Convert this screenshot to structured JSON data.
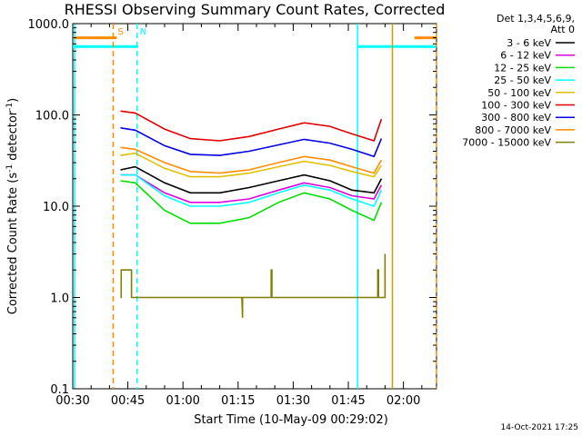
{
  "chart_data": {
    "type": "line",
    "title": "RHESSI Observing Summary Count Rates, Corrected",
    "xlabel": "Start Time (10-May-09 00:29:02)",
    "ylabel_main": "Corrected Count Rate (s",
    "ylabel_sup": "-1",
    "ylabel_mid": " detector",
    "ylabel_sup2": "-1",
    "ylabel_end": ")",
    "y_scale": "log",
    "xlim_minutes": [
      30,
      129
    ],
    "ylim": [
      0.1,
      1000
    ],
    "x_ticks": [
      {
        "minute": 30,
        "label": "00:30"
      },
      {
        "minute": 45,
        "label": "00:45"
      },
      {
        "minute": 60,
        "label": "01:00"
      },
      {
        "minute": 75,
        "label": "01:15"
      },
      {
        "minute": 90,
        "label": "01:30"
      },
      {
        "minute": 105,
        "label": "01:45"
      },
      {
        "minute": 120,
        "label": "02:00"
      }
    ],
    "y_ticks": [
      {
        "value": 0.1,
        "label": "0.1"
      },
      {
        "value": 1,
        "label": "1.0"
      },
      {
        "value": 10,
        "label": "10.0"
      },
      {
        "value": 100,
        "label": "100.0"
      },
      {
        "value": 1000,
        "label": "1000.0"
      }
    ],
    "legend_header": [
      "Det 1,3,4,5,6,9,",
      "Att 0"
    ],
    "series": [
      {
        "name": "3 - 6 keV",
        "color": "#000000",
        "t": [
          43,
          47,
          55,
          62,
          70,
          78,
          86,
          93,
          100,
          106,
          112,
          114
        ],
        "values": [
          25,
          27,
          18,
          14,
          14,
          16,
          19,
          22,
          19,
          15,
          14,
          20
        ]
      },
      {
        "name": "6 - 12 keV",
        "color": "#e000e0",
        "t": [
          43,
          47,
          55,
          62,
          70,
          78,
          86,
          93,
          100,
          106,
          112,
          114
        ],
        "values": [
          22,
          22,
          14,
          11,
          11,
          12,
          15,
          18,
          16,
          13,
          12,
          17
        ]
      },
      {
        "name": "12 - 25 keV",
        "color": "#00e000",
        "t": [
          43,
          47,
          55,
          62,
          70,
          78,
          86,
          93,
          100,
          106,
          112,
          114
        ],
        "values": [
          19,
          18,
          9,
          6.5,
          6.5,
          7.5,
          11,
          14,
          12,
          9,
          7,
          11
        ]
      },
      {
        "name": "25 - 50 keV",
        "color": "#00ffff",
        "t": [
          43,
          47,
          55,
          62,
          70,
          78,
          86,
          93,
          100,
          106,
          112,
          114
        ],
        "values": [
          22,
          22,
          13,
          10,
          10,
          11,
          14,
          17,
          15,
          12,
          10,
          15
        ]
      },
      {
        "name": "50 - 100 keV",
        "color": "#e0c000",
        "t": [
          43,
          47,
          55,
          62,
          70,
          78,
          86,
          93,
          100,
          106,
          112,
          114
        ],
        "values": [
          36,
          38,
          26,
          21,
          21,
          23,
          27,
          31,
          28,
          24,
          21,
          28
        ]
      },
      {
        "name": "100 - 300 keV",
        "color": "#e00000",
        "t": [
          43,
          47,
          55,
          62,
          70,
          78,
          86,
          93,
          100,
          106,
          112,
          114
        ],
        "values": [
          110,
          105,
          70,
          55,
          52,
          58,
          70,
          82,
          75,
          62,
          52,
          90
        ]
      },
      {
        "name": "300 - 800 keV",
        "color": "#0000e0",
        "t": [
          43,
          47,
          55,
          62,
          70,
          78,
          86,
          93,
          100,
          106,
          112,
          114
        ],
        "values": [
          72,
          68,
          46,
          37,
          36,
          40,
          47,
          54,
          49,
          42,
          35,
          55
        ]
      },
      {
        "name": "800 - 7000 keV",
        "color": "#ff8c00",
        "t": [
          43,
          47,
          55,
          62,
          70,
          78,
          86,
          93,
          100,
          106,
          112,
          114
        ],
        "values": [
          44,
          42,
          30,
          24,
          23,
          25,
          30,
          35,
          32,
          27,
          23,
          32
        ]
      },
      {
        "name": "7000 - 15000 keV",
        "color": "#808000",
        "t": [
          43,
          43.2,
          43.2,
          46,
          46,
          46.2,
          46.2,
          76,
          76,
          76.2,
          76.2,
          84,
          84,
          84.2,
          84.2,
          113,
          113,
          113.2,
          113.2,
          115,
          115
        ],
        "values": [
          1,
          1,
          2,
          2,
          1,
          1,
          1,
          1,
          1,
          0.6,
          1,
          1,
          2,
          2,
          1,
          1,
          2,
          2,
          1,
          1,
          3
        ]
      }
    ],
    "annotations": [
      {
        "label": "S",
        "minute": 41.5,
        "color": "#ff8c00"
      },
      {
        "label": "N",
        "minute": 47.5,
        "color": "#00ffff"
      }
    ],
    "status_bars": [
      {
        "color": "#ff8c00",
        "level": 700,
        "ranges": [
          [
            30,
            42
          ],
          [
            123,
            129
          ]
        ]
      },
      {
        "color": "#00ffff",
        "level": 560,
        "ranges": [
          [
            30,
            47.8
          ],
          [
            107.5,
            129
          ]
        ]
      }
    ],
    "vertical_markers": [
      {
        "minute": 30.5,
        "color": "#00ffff",
        "style": "solid"
      },
      {
        "minute": 41,
        "color": "#ff8c00",
        "style": "dashed"
      },
      {
        "minute": 47.5,
        "color": "#00ffff",
        "style": "dashed"
      },
      {
        "minute": 107.5,
        "color": "#00ffff",
        "style": "solid"
      },
      {
        "minute": 117,
        "color": "#c8a000",
        "style": "solid"
      },
      {
        "minute": 129,
        "color": "#ff8c00",
        "style": "dashed"
      }
    ],
    "footer": "14-Oct-2021 17:25"
  }
}
